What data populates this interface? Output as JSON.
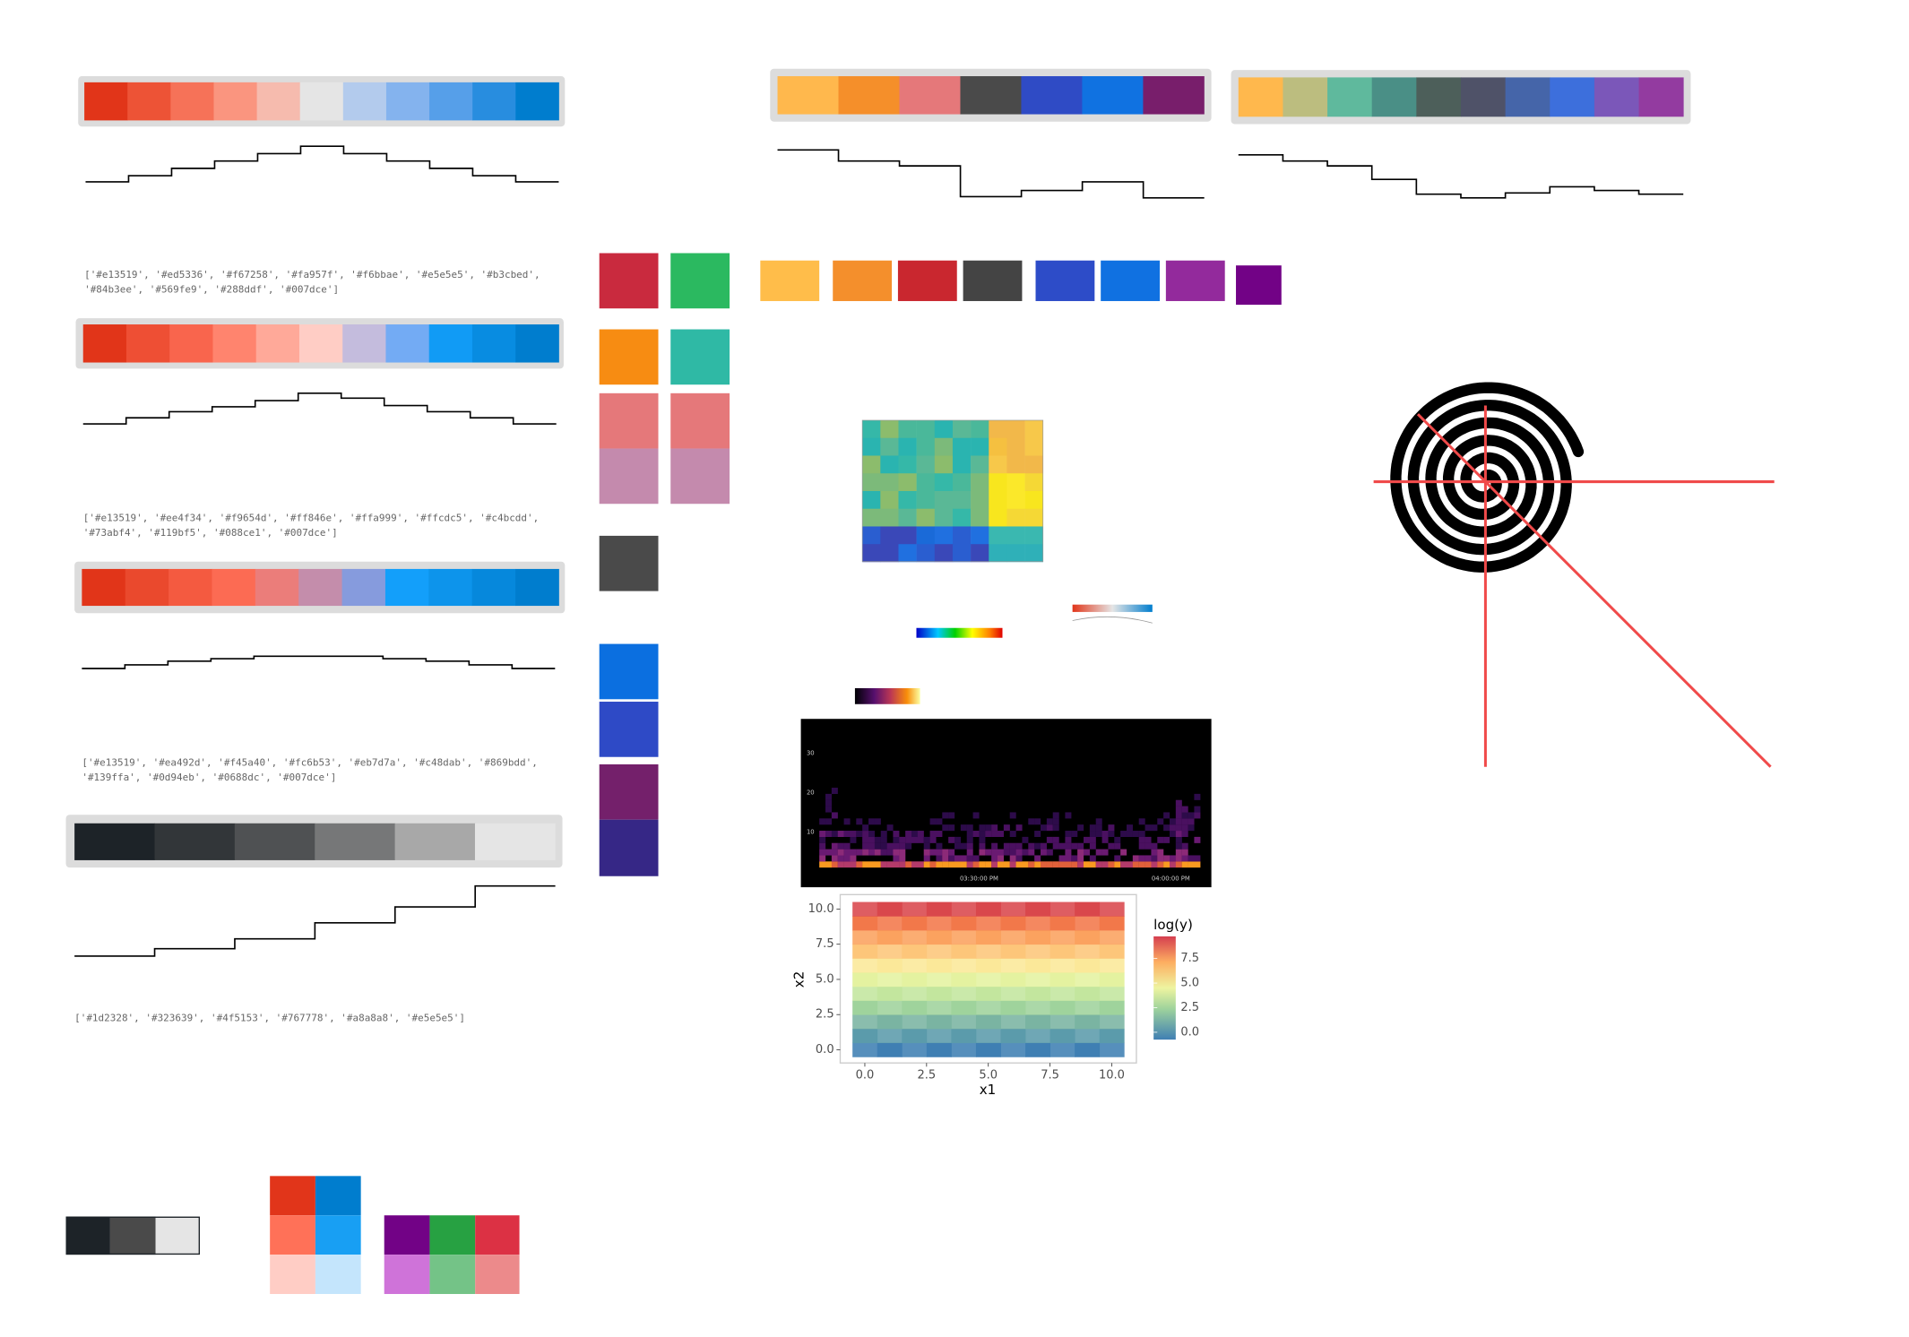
{
  "palettes": [
    {
      "hex_lines": [
        "['#e13519', '#ed5336', '#f67258', '#fa957f', '#f6bbae', '#e5e5e5', '#b3cbed',",
        "'#84b3ee', '#569fe9', '#288ddf', '#007dce']"
      ]
    },
    {
      "hex_lines": [
        "['#e13519', '#ee4f34', '#f9654d', '#ff846e', '#ffa999', '#ffcdc5', '#c4bcdd',",
        "'#73abf4', '#119bf5', '#088ce1', '#007dce']"
      ]
    },
    {
      "hex_lines": [
        "['#e13519', '#ea492d', '#f45a40', '#fc6b53', '#eb7d7a', '#c48dab', '#869bdd',",
        "'#139ffa', '#0d94eb', '#0688dc', '#007dce']"
      ]
    },
    {
      "hex_lines": [
        "['#1d2328', '#323639', '#4f5153', '#767778', '#a8a8a8', '#e5e5e5']"
      ]
    }
  ],
  "spectrogram": {
    "yticks": [
      10,
      20,
      30
    ],
    "xticks": [
      "03:30:00 PM",
      "04:00:00 PM"
    ]
  },
  "heatmap": {
    "x_label": "x1",
    "y_label": "x2",
    "legend_title": "log(y)",
    "xlim": [
      -0.5,
      10.5
    ],
    "ylim": [
      -0.5,
      10.5
    ],
    "xticks": [
      {
        "value": 0,
        "label": "0.0"
      },
      {
        "value": 2.5,
        "label": "2.5"
      },
      {
        "value": 5,
        "label": "5.0"
      },
      {
        "value": 7.5,
        "label": "7.5"
      },
      {
        "value": 10,
        "label": "10.0"
      }
    ],
    "yticks": [
      {
        "value": 0,
        "label": "0.0"
      },
      {
        "value": 2.5,
        "label": "2.5"
      },
      {
        "value": 5,
        "label": "5.0"
      },
      {
        "value": 7.5,
        "label": "7.5"
      },
      {
        "value": 10,
        "label": "10.0"
      }
    ],
    "legend_ticks": [
      {
        "value": 0,
        "label": "0.0"
      },
      {
        "value": 2.5,
        "label": "2.5"
      },
      {
        "value": 5,
        "label": "5.0"
      },
      {
        "value": 7.5,
        "label": "7.5"
      }
    ]
  }
}
